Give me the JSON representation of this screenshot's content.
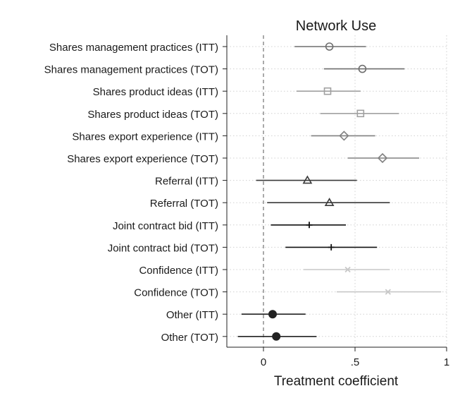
{
  "chart_data": {
    "type": "scatter",
    "title": "Network Use",
    "xlabel": "Treatment coefficient",
    "ylabel": "",
    "xlim": [
      -0.2,
      1.0
    ],
    "xticks": [
      0,
      0.5,
      1
    ],
    "xtick_labels": [
      "0",
      ".5",
      "1"
    ],
    "reference_line_x": 0,
    "grid": true,
    "series": [
      {
        "label": "Shares management practices (ITT)",
        "estimate": 0.36,
        "ci": [
          0.17,
          0.56
        ],
        "marker": "circle-open",
        "color": "#6e6e6e"
      },
      {
        "label": "Shares management practices (TOT)",
        "estimate": 0.54,
        "ci": [
          0.33,
          0.77
        ],
        "marker": "circle-open",
        "color": "#6e6e6e"
      },
      {
        "label": "Shares product ideas (ITT)",
        "estimate": 0.35,
        "ci": [
          0.18,
          0.53
        ],
        "marker": "square-open",
        "color": "#a0a0a0"
      },
      {
        "label": "Shares product ideas (TOT)",
        "estimate": 0.53,
        "ci": [
          0.31,
          0.74
        ],
        "marker": "square-open",
        "color": "#a0a0a0"
      },
      {
        "label": "Shares export experience (ITT)",
        "estimate": 0.44,
        "ci": [
          0.26,
          0.61
        ],
        "marker": "diamond-open",
        "color": "#808080"
      },
      {
        "label": "Shares export experience (TOT)",
        "estimate": 0.65,
        "ci": [
          0.46,
          0.85
        ],
        "marker": "diamond-open",
        "color": "#808080"
      },
      {
        "label": "Referral (ITT)",
        "estimate": 0.24,
        "ci": [
          -0.04,
          0.51
        ],
        "marker": "triangle-open",
        "color": "#3a3a3a"
      },
      {
        "label": "Referral (TOT)",
        "estimate": 0.36,
        "ci": [
          0.02,
          0.69
        ],
        "marker": "triangle-open",
        "color": "#3a3a3a"
      },
      {
        "label": "Joint contract bid (ITT)",
        "estimate": 0.25,
        "ci": [
          0.04,
          0.45
        ],
        "marker": "plus",
        "color": "#111111"
      },
      {
        "label": "Joint contract bid (TOT)",
        "estimate": 0.37,
        "ci": [
          0.12,
          0.62
        ],
        "marker": "plus",
        "color": "#111111"
      },
      {
        "label": "Confidence (ITT)",
        "estimate": 0.46,
        "ci": [
          0.22,
          0.69
        ],
        "marker": "x",
        "color": "#c8c8c8"
      },
      {
        "label": "Confidence (TOT)",
        "estimate": 0.68,
        "ci": [
          0.4,
          0.97
        ],
        "marker": "x",
        "color": "#c8c8c8"
      },
      {
        "label": "Other (ITT)",
        "estimate": 0.05,
        "ci": [
          -0.12,
          0.23
        ],
        "marker": "circle-filled",
        "color": "#222222"
      },
      {
        "label": "Other (TOT)",
        "estimate": 0.07,
        "ci": [
          -0.14,
          0.29
        ],
        "marker": "circle-filled",
        "color": "#222222"
      }
    ]
  }
}
